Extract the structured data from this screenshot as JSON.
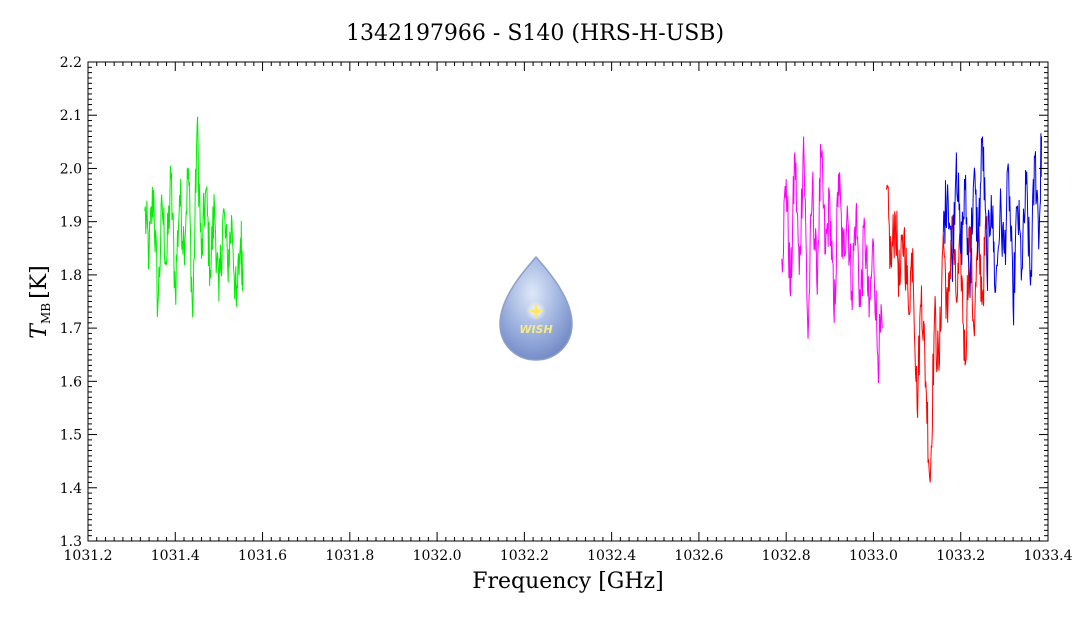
{
  "chart_data": {
    "type": "line",
    "title": "1342197966 - S140 (HRS-H-USB)",
    "xlabel": "Frequency [GHz]",
    "ylabel_main": "T",
    "ylabel_sub": "MB",
    "ylabel_unit": "[K]",
    "xlim": [
      1031.2,
      1033.4
    ],
    "ylim": [
      1.3,
      2.2
    ],
    "xticks": [
      "1031.2",
      "1031.4",
      "1031.6",
      "1031.8",
      "1032.0",
      "1032.2",
      "1032.4",
      "1032.6",
      "1032.8",
      "1033.0",
      "1033.2",
      "1033.4"
    ],
    "yticks": [
      "1.3",
      "1.4",
      "1.5",
      "1.6",
      "1.7",
      "1.8",
      "1.9",
      "2.0",
      "2.1",
      "2.2"
    ],
    "grid": false,
    "legend": "none",
    "series": [
      {
        "color": "#00ee00",
        "x": [
          1031.33,
          1031.34,
          1031.35,
          1031.36,
          1031.37,
          1031.38,
          1031.39,
          1031.4,
          1031.41,
          1031.42,
          1031.43,
          1031.44,
          1031.45,
          1031.46,
          1031.47,
          1031.48,
          1031.49,
          1031.5,
          1031.51,
          1031.52,
          1031.53,
          1031.54,
          1031.55,
          1031.555
        ],
        "y": [
          1.92,
          1.84,
          1.96,
          1.74,
          1.93,
          1.82,
          1.98,
          1.77,
          1.95,
          1.86,
          2.0,
          1.72,
          2.08,
          1.83,
          1.96,
          1.81,
          1.93,
          1.75,
          1.92,
          1.82,
          1.9,
          1.74,
          1.87,
          1.81
        ]
      },
      {
        "color": "#ff00ff",
        "x": [
          1032.79,
          1032.8,
          1032.81,
          1032.82,
          1032.83,
          1032.84,
          1032.85,
          1032.86,
          1032.87,
          1032.88,
          1032.89,
          1032.9,
          1032.91,
          1032.92,
          1032.93,
          1032.94,
          1032.95,
          1032.96,
          1032.97,
          1032.98,
          1032.99,
          1033.0,
          1033.01,
          1033.02
        ],
        "y": [
          1.83,
          1.98,
          1.76,
          2.03,
          1.8,
          2.06,
          1.68,
          1.97,
          1.79,
          2.02,
          1.84,
          1.94,
          1.71,
          1.99,
          1.83,
          1.93,
          1.77,
          1.92,
          1.74,
          1.89,
          1.72,
          1.86,
          1.65,
          1.7
        ]
      },
      {
        "color": "#ff0000",
        "x": [
          1033.03,
          1033.04,
          1033.05,
          1033.06,
          1033.07,
          1033.08,
          1033.09,
          1033.1,
          1033.11,
          1033.12,
          1033.13,
          1033.14,
          1033.15,
          1033.16,
          1033.17,
          1033.18,
          1033.19,
          1033.2,
          1033.21,
          1033.22,
          1033.23,
          1033.24,
          1033.25,
          1033.26
        ],
        "y": [
          1.96,
          1.82,
          1.91,
          1.78,
          1.88,
          1.74,
          1.85,
          1.55,
          1.78,
          1.6,
          1.41,
          1.72,
          1.62,
          1.88,
          1.71,
          1.91,
          1.75,
          1.84,
          1.63,
          1.89,
          1.7,
          1.86,
          1.76,
          1.91
        ]
      },
      {
        "color": "#0000ee",
        "x": [
          1033.16,
          1033.17,
          1033.18,
          1033.19,
          1033.2,
          1033.21,
          1033.22,
          1033.23,
          1033.24,
          1033.25,
          1033.26,
          1033.27,
          1033.28,
          1033.29,
          1033.3,
          1033.31,
          1033.32,
          1033.33,
          1033.34,
          1033.35,
          1033.36,
          1033.37,
          1033.38,
          1033.385
        ],
        "y": [
          1.88,
          1.97,
          1.82,
          2.03,
          1.84,
          1.96,
          1.79,
          1.98,
          1.86,
          2.06,
          1.81,
          1.95,
          1.77,
          1.92,
          1.84,
          1.99,
          1.74,
          1.93,
          1.81,
          1.97,
          1.78,
          2.02,
          1.88,
          2.06
        ]
      }
    ]
  },
  "logo": {
    "text": "WISH",
    "color": "#8fa6d6"
  }
}
